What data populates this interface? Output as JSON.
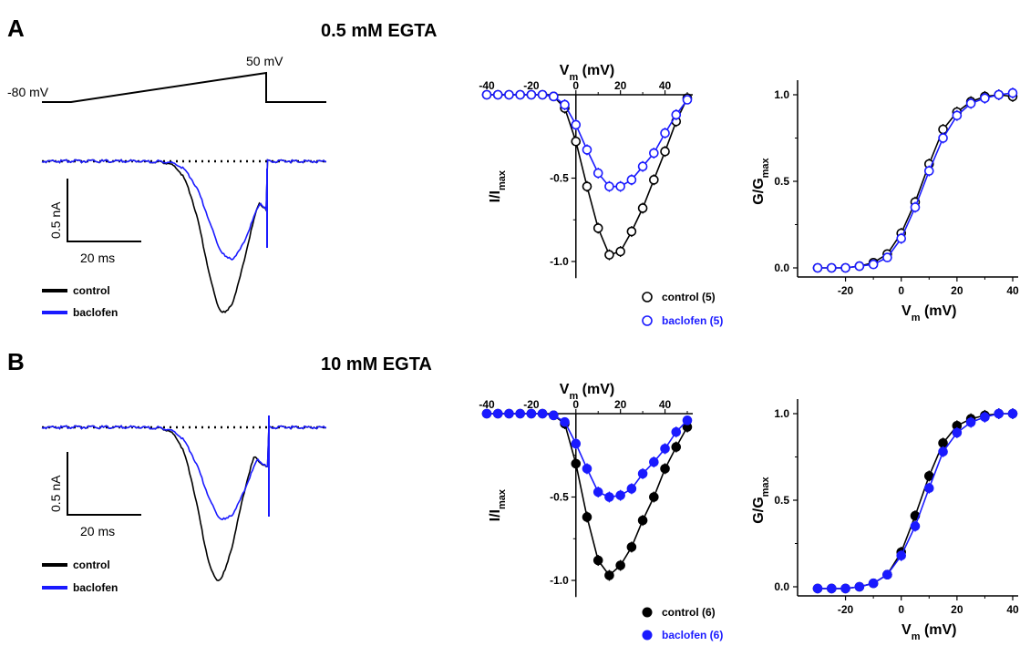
{
  "panels": [
    {
      "letter": "A",
      "condition": "0.5 mM EGTA",
      "protocol_labels": {
        "start": "-80 mV",
        "peak": "50 mV"
      },
      "scalebar": {
        "y_label": "0.5 nA",
        "x_label": "20 ms"
      },
      "trace_legend": [
        "control",
        "baclofen"
      ],
      "iv_legend": [
        "control (5)",
        "baclofen (5)"
      ],
      "marker_style": "open"
    },
    {
      "letter": "B",
      "condition": "10 mM EGTA",
      "scalebar": {
        "y_label": "0.5 nA",
        "x_label": "20 ms"
      },
      "trace_legend": [
        "control",
        "baclofen"
      ],
      "iv_legend": [
        "control (6)",
        "baclofen (6)"
      ],
      "marker_style": "filled"
    }
  ],
  "colors": {
    "control": "#000000",
    "baclofen": "#1a1aff"
  },
  "chart_data": [
    {
      "type": "line",
      "id": "A-iv",
      "xlabel": "Vm (mV)",
      "ylabel": "I/Imax",
      "xlim": [
        -40,
        50
      ],
      "ylim": [
        -1.0,
        0
      ],
      "xticks": [
        -40,
        -20,
        0,
        20,
        40
      ],
      "yticks": [
        -0.5,
        -1.0
      ],
      "x": [
        -40,
        -35,
        -30,
        -25,
        -20,
        -15,
        -10,
        -5,
        0,
        5,
        10,
        15,
        20,
        25,
        30,
        35,
        40,
        45,
        50
      ],
      "series": [
        {
          "name": "control (5)",
          "values": [
            0,
            0,
            0,
            0,
            0,
            0,
            -0.01,
            -0.08,
            -0.28,
            -0.55,
            -0.8,
            -0.96,
            -0.94,
            -0.82,
            -0.68,
            -0.51,
            -0.34,
            -0.16,
            -0.02
          ]
        },
        {
          "name": "baclofen (5)",
          "values": [
            0,
            0,
            0,
            0,
            0,
            0,
            -0.01,
            -0.06,
            -0.18,
            -0.33,
            -0.47,
            -0.55,
            -0.55,
            -0.51,
            -0.43,
            -0.35,
            -0.23,
            -0.12,
            -0.03
          ]
        }
      ]
    },
    {
      "type": "line",
      "id": "A-gv",
      "xlabel": "Vm (mV)",
      "ylabel": "G/Gmax",
      "xlim": [
        -30,
        40
      ],
      "ylim": [
        0,
        1.0
      ],
      "xticks": [
        -20,
        0,
        20,
        40
      ],
      "yticks": [
        0.0,
        0.5,
        1.0
      ],
      "x": [
        -30,
        -25,
        -20,
        -15,
        -10,
        -5,
        0,
        5,
        10,
        15,
        20,
        25,
        30,
        35,
        40
      ],
      "series": [
        {
          "name": "control (5)",
          "values": [
            0,
            0,
            0,
            0.01,
            0.03,
            0.08,
            0.2,
            0.38,
            0.6,
            0.8,
            0.9,
            0.96,
            0.99,
            1.0,
            0.99
          ]
        },
        {
          "name": "baclofen (5)",
          "values": [
            0,
            0,
            0,
            0.01,
            0.02,
            0.06,
            0.17,
            0.35,
            0.56,
            0.75,
            0.88,
            0.95,
            0.98,
            1.0,
            1.01
          ]
        }
      ]
    },
    {
      "type": "line",
      "id": "B-iv",
      "xlabel": "Vm (mV)",
      "ylabel": "I/Imax",
      "xlim": [
        -40,
        50
      ],
      "ylim": [
        -1.0,
        0
      ],
      "xticks": [
        -40,
        -20,
        0,
        20,
        40
      ],
      "yticks": [
        -0.5,
        -1.0
      ],
      "x": [
        -40,
        -35,
        -30,
        -25,
        -20,
        -15,
        -10,
        -5,
        0,
        5,
        10,
        15,
        20,
        25,
        30,
        35,
        40,
        45,
        50
      ],
      "series": [
        {
          "name": "control (6)",
          "values": [
            0,
            0,
            0,
            0,
            0,
            0,
            -0.01,
            -0.06,
            -0.3,
            -0.62,
            -0.88,
            -0.97,
            -0.91,
            -0.8,
            -0.64,
            -0.5,
            -0.33,
            -0.2,
            -0.08
          ]
        },
        {
          "name": "baclofen (6)",
          "values": [
            0,
            0,
            0,
            0,
            0,
            0,
            -0.01,
            -0.05,
            -0.18,
            -0.33,
            -0.47,
            -0.5,
            -0.49,
            -0.45,
            -0.36,
            -0.29,
            -0.21,
            -0.11,
            -0.04
          ]
        }
      ]
    },
    {
      "type": "line",
      "id": "B-gv",
      "xlabel": "Vm (mV)",
      "ylabel": "G/Gmax",
      "xlim": [
        -30,
        40
      ],
      "ylim": [
        0,
        1.0
      ],
      "xticks": [
        -20,
        0,
        20,
        40
      ],
      "yticks": [
        0.0,
        0.5,
        1.0
      ],
      "x": [
        -30,
        -25,
        -20,
        -15,
        -10,
        -5,
        0,
        5,
        10,
        15,
        20,
        25,
        30,
        35,
        40
      ],
      "series": [
        {
          "name": "control (6)",
          "values": [
            -0.01,
            -0.01,
            -0.01,
            0,
            0.02,
            0.07,
            0.2,
            0.41,
            0.64,
            0.83,
            0.93,
            0.97,
            0.99,
            1.0,
            1.0
          ]
        },
        {
          "name": "baclofen (6)",
          "values": [
            -0.01,
            -0.01,
            -0.01,
            0,
            0.02,
            0.07,
            0.18,
            0.35,
            0.57,
            0.78,
            0.89,
            0.95,
            0.98,
            1.0,
            1.0
          ]
        }
      ]
    }
  ]
}
